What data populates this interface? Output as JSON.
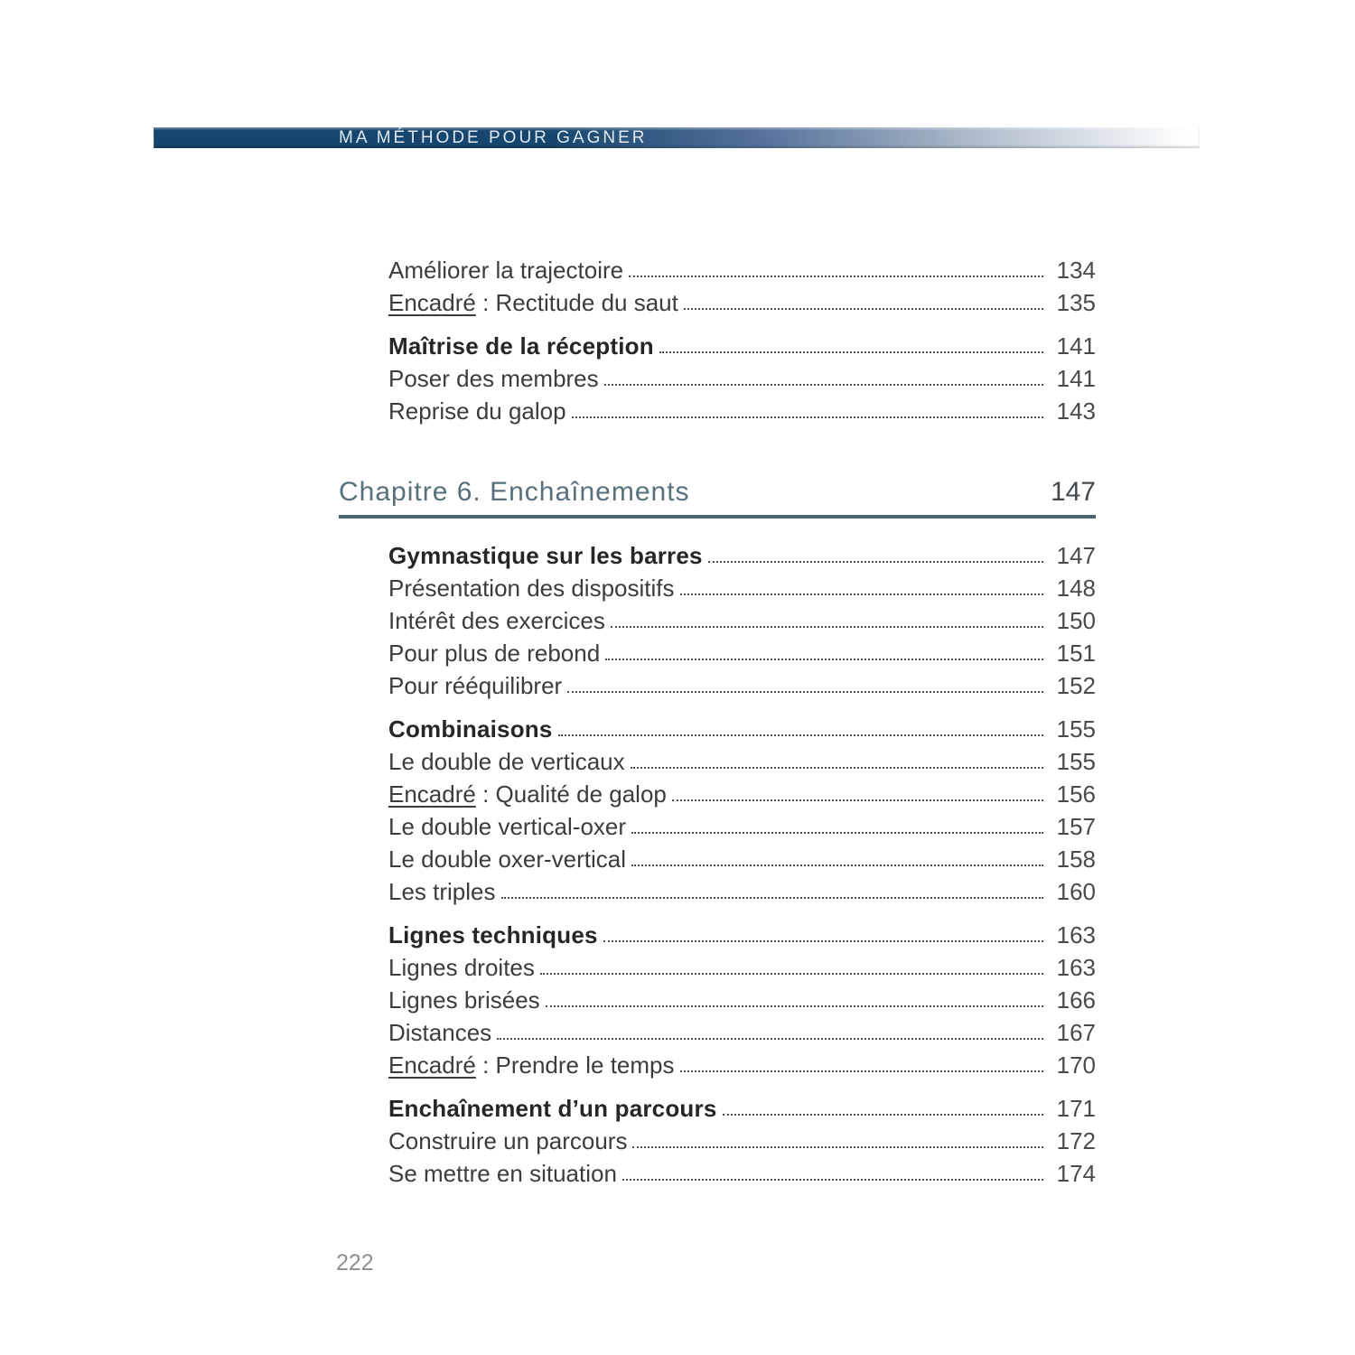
{
  "header": {
    "title": "MA MÉTHODE POUR GAGNER"
  },
  "chapter": {
    "title": "Chapitre 6. Enchaînements",
    "page": "147"
  },
  "toc": {
    "before": [
      {
        "prefix": "",
        "label": "Améliorer la trajectoire",
        "page": "134",
        "bold": false,
        "gap": false
      },
      {
        "prefix": "Encadré",
        "label": " : Rectitude du saut",
        "page": "135",
        "bold": false,
        "gap": false
      },
      {
        "prefix": "",
        "label": "Maîtrise de la réception",
        "page": "141",
        "bold": true,
        "gap": true
      },
      {
        "prefix": "",
        "label": "Poser des membres",
        "page": "141",
        "bold": false,
        "gap": false
      },
      {
        "prefix": "",
        "label": "Reprise du galop",
        "page": "143",
        "bold": false,
        "gap": false
      }
    ],
    "after": [
      {
        "prefix": "",
        "label": "Gymnastique sur les barres",
        "page": "147",
        "bold": true,
        "gap": false
      },
      {
        "prefix": "",
        "label": "Présentation des dispositifs",
        "page": "148",
        "bold": false,
        "gap": false
      },
      {
        "prefix": "",
        "label": "Intérêt des exercices",
        "page": "150",
        "bold": false,
        "gap": false
      },
      {
        "prefix": "",
        "label": "Pour plus de rebond",
        "page": "151",
        "bold": false,
        "gap": false
      },
      {
        "prefix": "",
        "label": "Pour rééquilibrer",
        "page": "152",
        "bold": false,
        "gap": false
      },
      {
        "prefix": "",
        "label": "Combinaisons",
        "page": "155",
        "bold": true,
        "gap": true
      },
      {
        "prefix": "",
        "label": "Le double de verticaux",
        "page": "155",
        "bold": false,
        "gap": false
      },
      {
        "prefix": "Encadré",
        "label": " : Qualité de galop",
        "page": "156",
        "bold": false,
        "gap": false
      },
      {
        "prefix": "",
        "label": "Le double vertical-oxer",
        "page": "157",
        "bold": false,
        "gap": false
      },
      {
        "prefix": "",
        "label": "Le double oxer-vertical",
        "page": "158",
        "bold": false,
        "gap": false
      },
      {
        "prefix": "",
        "label": "Les triples",
        "page": "160",
        "bold": false,
        "gap": false
      },
      {
        "prefix": "",
        "label": "Lignes techniques",
        "page": "163",
        "bold": true,
        "gap": true
      },
      {
        "prefix": "",
        "label": "Lignes droites",
        "page": "163",
        "bold": false,
        "gap": false
      },
      {
        "prefix": "",
        "label": "Lignes brisées",
        "page": "166",
        "bold": false,
        "gap": false
      },
      {
        "prefix": "",
        "label": "Distances",
        "page": "167",
        "bold": false,
        "gap": false
      },
      {
        "prefix": "Encadré",
        "label": " : Prendre le temps",
        "page": "170",
        "bold": false,
        "gap": false
      },
      {
        "prefix": "",
        "label": "Enchaînement d’un parcours",
        "page": "171",
        "bold": true,
        "gap": true
      },
      {
        "prefix": "",
        "label": "Construire un parcours",
        "page": "172",
        "bold": false,
        "gap": false
      },
      {
        "prefix": "",
        "label": "Se mettre en situation",
        "page": "174",
        "bold": false,
        "gap": false
      }
    ]
  },
  "footer": {
    "page_number": "222"
  },
  "colors": {
    "bar-navy": "#16466d",
    "chapter": "#57707b",
    "rule": "#4a6570",
    "text": "#3c3c3c",
    "dots": "#4c4c4c"
  }
}
